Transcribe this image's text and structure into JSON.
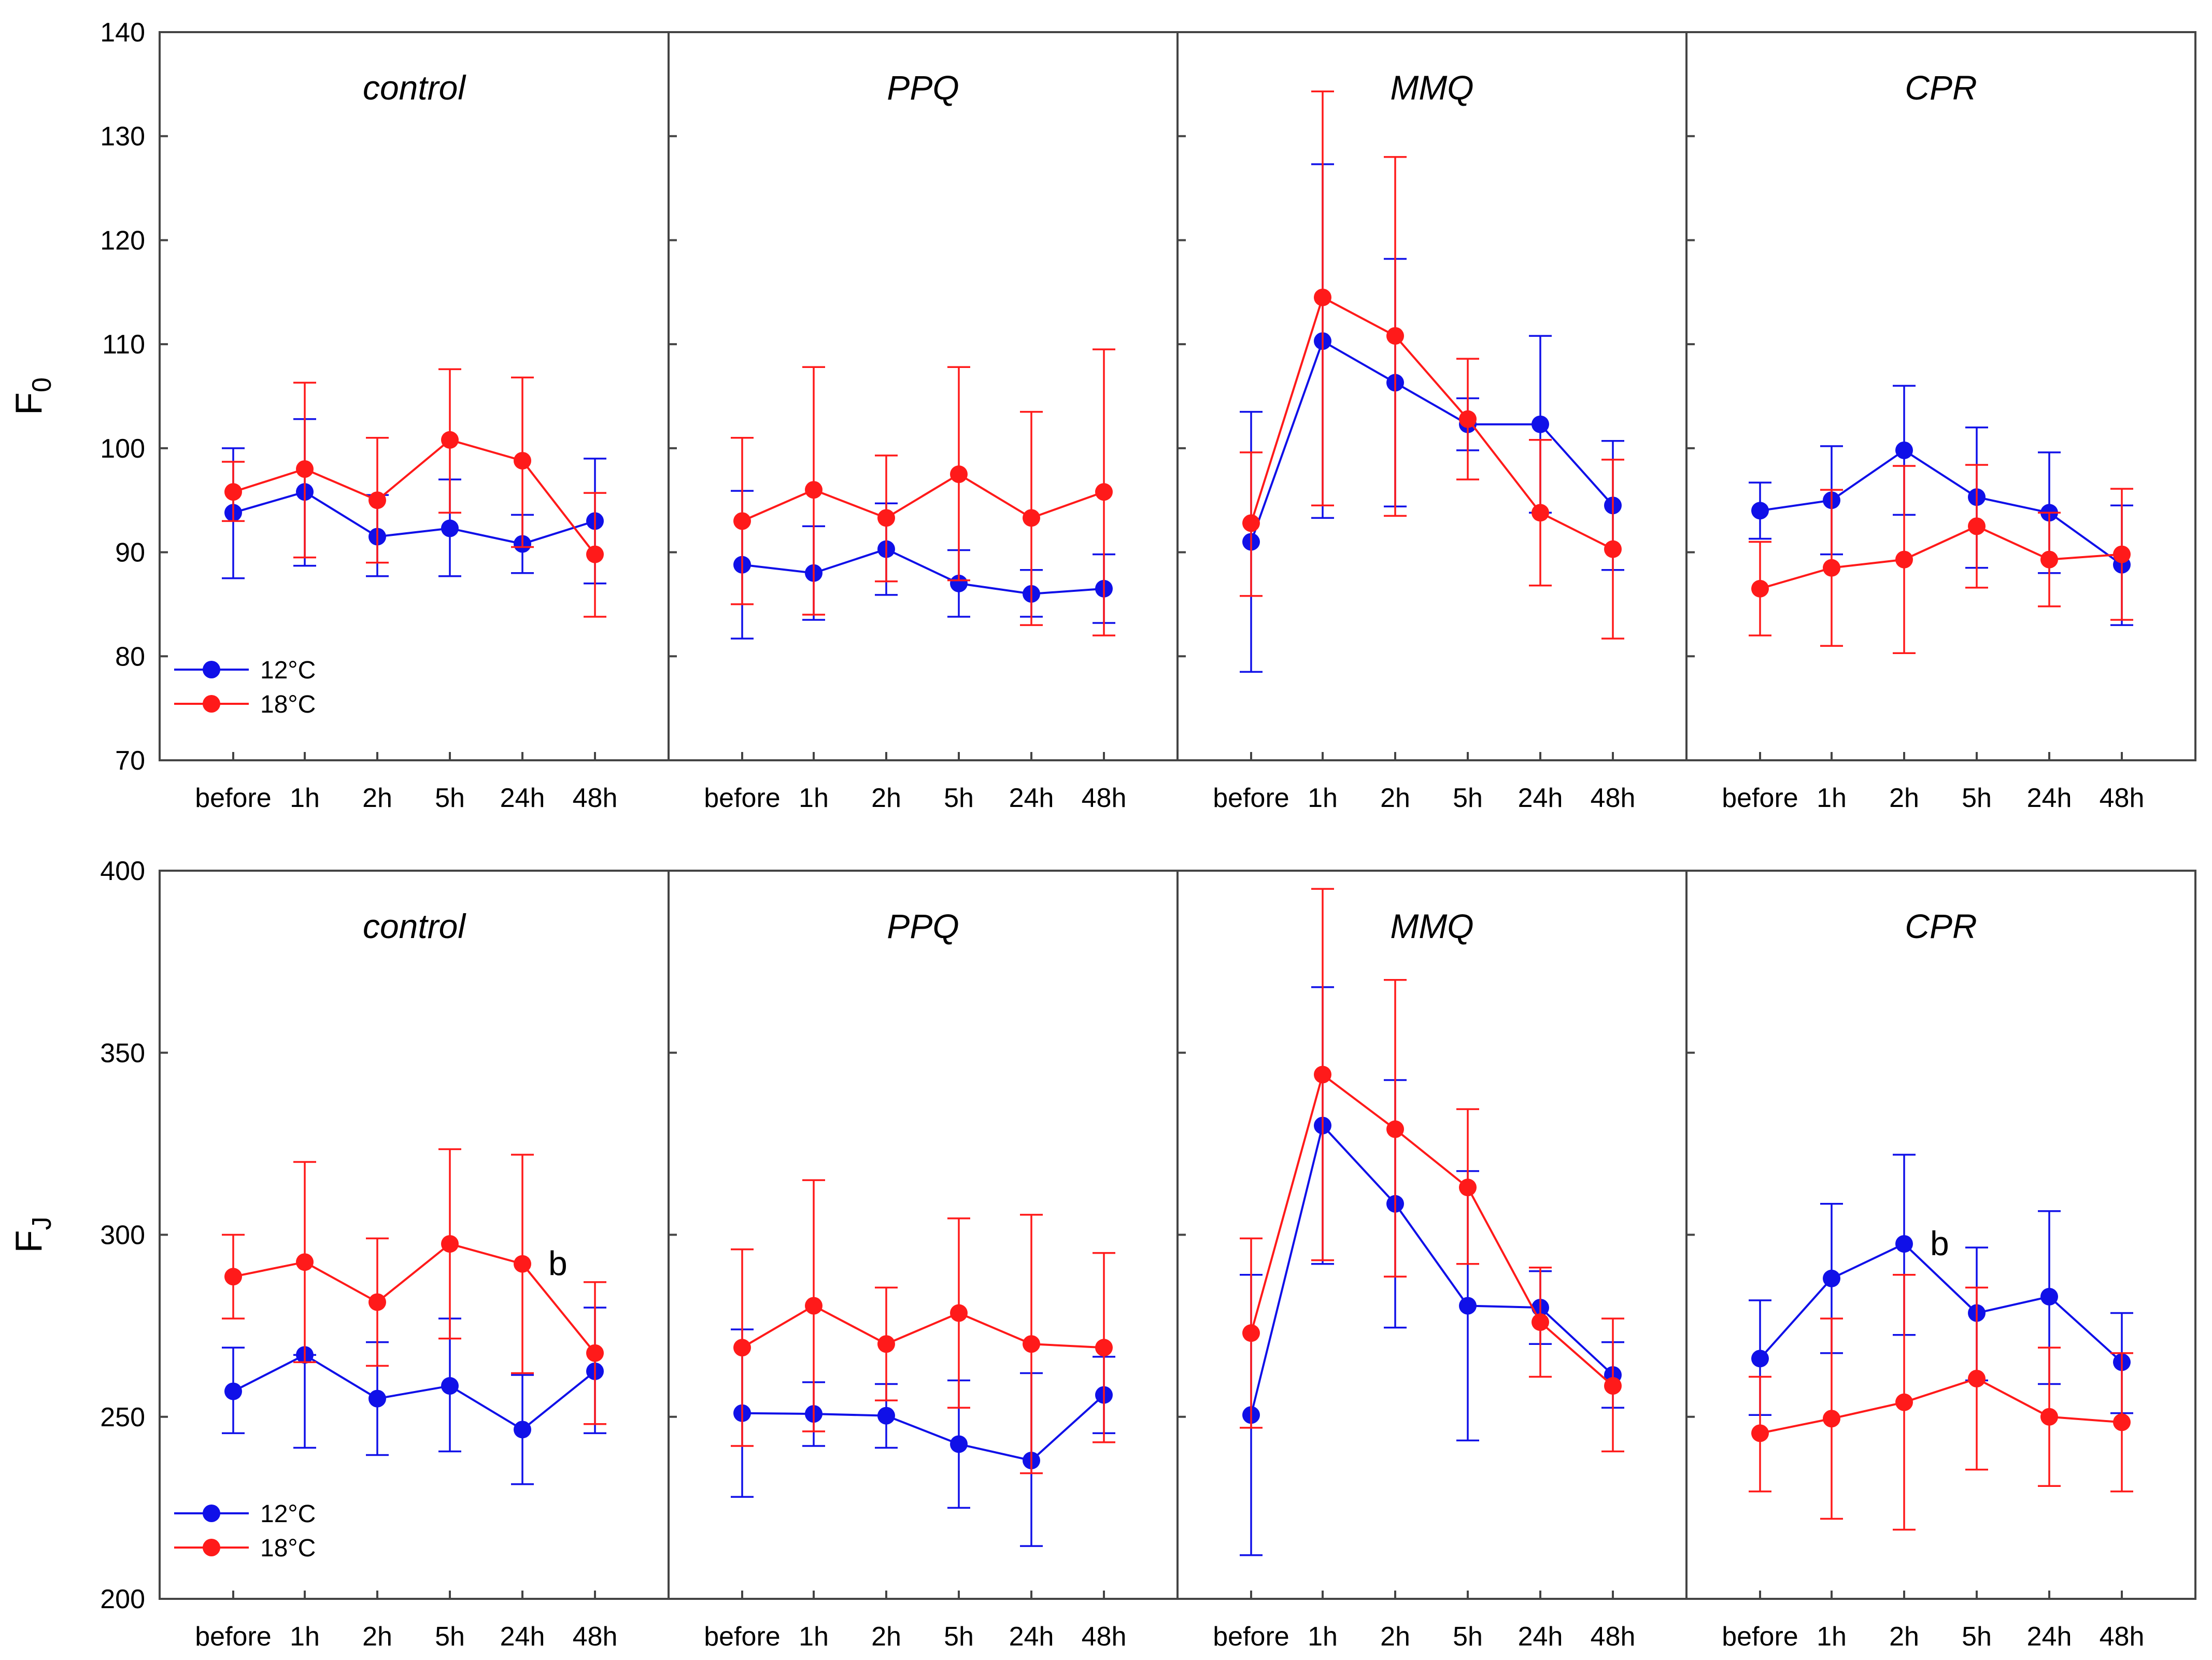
{
  "chart_data": [
    {
      "type": "line",
      "ylabel": "F",
      "ylabel_sub": "0",
      "ylim": [
        70,
        140
      ],
      "yticks": [
        70,
        80,
        90,
        100,
        110,
        120,
        130,
        140
      ],
      "categories": [
        "before",
        "1h",
        "2h",
        "5h",
        "24h",
        "48h"
      ],
      "legend": {
        "panel": 0,
        "entries": [
          "12°C",
          "18°C"
        ]
      },
      "panels": [
        {
          "title": "control",
          "series": [
            {
              "name": "12°C",
              "values": [
                93.8,
                95.8,
                91.5,
                92.3,
                90.8,
                93.0
              ],
              "err_low": [
                87.5,
                88.7,
                87.7,
                87.7,
                88.0,
                87.0
              ],
              "err_high": [
                100.0,
                102.8,
                95.5,
                97.0,
                93.6,
                99.0
              ]
            },
            {
              "name": "18°C",
              "values": [
                95.8,
                98.0,
                95.0,
                100.8,
                98.8,
                89.8
              ],
              "err_low": [
                93.0,
                89.5,
                89.0,
                93.8,
                90.5,
                83.8
              ],
              "err_high": [
                98.7,
                106.3,
                101.0,
                107.6,
                106.8,
                95.7
              ]
            }
          ],
          "annotations": []
        },
        {
          "title": "PPQ",
          "series": [
            {
              "name": "12°C",
              "values": [
                88.8,
                88.0,
                90.3,
                87.0,
                86.0,
                86.5
              ],
              "err_low": [
                81.7,
                83.5,
                85.9,
                83.8,
                83.8,
                83.2
              ],
              "err_high": [
                95.9,
                92.5,
                94.7,
                90.2,
                88.3,
                89.8
              ]
            },
            {
              "name": "18°C",
              "values": [
                93.0,
                96.0,
                93.3,
                97.5,
                93.3,
                95.8
              ],
              "err_low": [
                85.0,
                84.0,
                87.2,
                87.3,
                83.0,
                82.0
              ],
              "err_high": [
                101.0,
                107.8,
                99.3,
                107.8,
                103.5,
                109.5
              ]
            }
          ],
          "annotations": []
        },
        {
          "title": "MMQ",
          "series": [
            {
              "name": "12°C",
              "values": [
                91.0,
                110.3,
                106.3,
                102.3,
                102.3,
                94.5
              ],
              "err_low": [
                78.5,
                93.3,
                94.4,
                99.8,
                93.8,
                88.3
              ],
              "err_high": [
                103.5,
                127.3,
                118.2,
                104.8,
                110.8,
                100.7
              ]
            },
            {
              "name": "18°C",
              "values": [
                92.8,
                114.5,
                110.8,
                102.8,
                93.8,
                90.3
              ],
              "err_low": [
                85.8,
                94.5,
                93.5,
                97.0,
                86.8,
                81.7
              ],
              "err_high": [
                99.6,
                134.3,
                128.0,
                108.6,
                100.8,
                98.9
              ]
            }
          ],
          "annotations": []
        },
        {
          "title": "CPR",
          "series": [
            {
              "name": "12°C",
              "values": [
                94.0,
                95.0,
                99.8,
                95.3,
                93.8,
                88.8
              ],
              "err_low": [
                91.3,
                89.8,
                93.6,
                88.5,
                88.0,
                83.0
              ],
              "err_high": [
                96.7,
                100.2,
                106.0,
                102.0,
                99.6,
                94.5
              ]
            },
            {
              "name": "18°C",
              "values": [
                86.5,
                88.5,
                89.3,
                92.5,
                89.3,
                89.8
              ],
              "err_low": [
                82.0,
                81.0,
                80.3,
                86.6,
                84.8,
                83.5
              ],
              "err_high": [
                91.0,
                96.0,
                98.3,
                98.4,
                93.8,
                96.1
              ]
            }
          ],
          "annotations": []
        }
      ]
    },
    {
      "type": "line",
      "ylabel": "F",
      "ylabel_sub": "J",
      "ylim": [
        200,
        400
      ],
      "yticks": [
        200,
        250,
        300,
        350,
        400
      ],
      "categories": [
        "before",
        "1h",
        "2h",
        "5h",
        "24h",
        "48h"
      ],
      "legend": {
        "panel": 0,
        "entries": [
          "12°C",
          "18°C"
        ]
      },
      "panels": [
        {
          "title": "control",
          "series": [
            {
              "name": "12°C",
              "values": [
                257,
                267,
                255,
                258.5,
                246.5,
                262.5
              ],
              "err_low": [
                245.5,
                241.5,
                239.5,
                240.5,
                231.5,
                245.5
              ],
              "err_high": [
                269,
                267,
                270.5,
                277,
                261.5,
                280
              ]
            },
            {
              "name": "18°C",
              "values": [
                288.5,
                292.5,
                281.5,
                297.5,
                292,
                267.5
              ],
              "err_low": [
                277,
                265,
                264,
                271.5,
                262,
                248
              ],
              "err_high": [
                300,
                320,
                299,
                323.5,
                322,
                287
              ]
            }
          ],
          "annotations": [
            {
              "text": "b",
              "category": "24h"
            }
          ]
        },
        {
          "title": "PPQ",
          "series": [
            {
              "name": "12°C",
              "values": [
                251,
                250.8,
                250.3,
                242.5,
                238,
                256
              ],
              "err_low": [
                228,
                242,
                241.5,
                225,
                214.5,
                245.5
              ],
              "err_high": [
                274,
                259.5,
                259,
                260,
                262,
                266.5
              ]
            },
            {
              "name": "18°C",
              "values": [
                269,
                280.5,
                270,
                278.5,
                270,
                269
              ],
              "err_low": [
                242,
                246,
                254.5,
                252.5,
                234.5,
                243
              ],
              "err_high": [
                296,
                315,
                285.5,
                304.5,
                305.5,
                295
              ]
            }
          ],
          "annotations": []
        },
        {
          "title": "MMQ",
          "series": [
            {
              "name": "12°C",
              "values": [
                250.5,
                330,
                308.5,
                280.5,
                280,
                261.5
              ],
              "err_low": [
                212,
                292,
                274.5,
                243.5,
                270,
                252.5
              ],
              "err_high": [
                289,
                368,
                342.5,
                317.5,
                290,
                270.5
              ]
            },
            {
              "name": "18°C",
              "values": [
                273,
                344,
                329,
                313,
                276,
                258.5
              ],
              "err_low": [
                247,
                293,
                288.5,
                292,
                261,
                240.5
              ],
              "err_high": [
                299,
                395,
                370,
                334.5,
                291,
                277
              ]
            }
          ],
          "annotations": []
        },
        {
          "title": "CPR",
          "series": [
            {
              "name": "12°C",
              "values": [
                266,
                288,
                297.5,
                278.5,
                283,
                265
              ],
              "err_low": [
                250.5,
                267.5,
                272.5,
                260,
                259,
                251
              ],
              "err_high": [
                282,
                308.5,
                322,
                296.5,
                306.5,
                278.5
              ]
            },
            {
              "name": "18°C",
              "values": [
                245.5,
                249.5,
                254,
                260.5,
                250,
                248.5
              ],
              "err_low": [
                229.5,
                222,
                219,
                235.5,
                231,
                229.5
              ],
              "err_high": [
                261,
                277,
                289,
                285.5,
                269,
                267.5
              ]
            }
          ],
          "annotations": [
            {
              "text": "b",
              "category": "2h"
            }
          ]
        }
      ]
    }
  ],
  "colors": {
    "series_12": "#1010e8",
    "series_18": "#ff1a1a",
    "axis": "#444444"
  }
}
